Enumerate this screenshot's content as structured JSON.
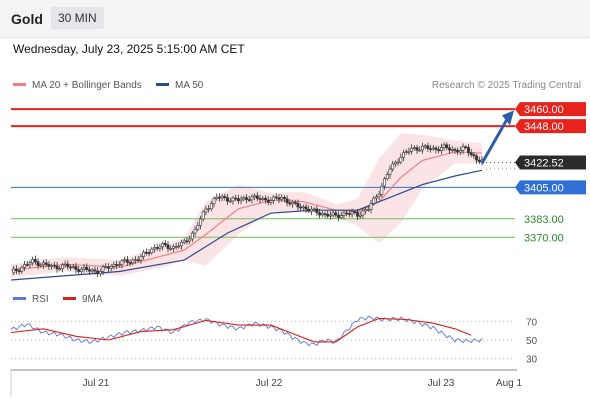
{
  "header": {
    "symbol": "Gold",
    "timeframe": "30 MIN"
  },
  "datetime": "Wednesday, July 23, 2025 5:15:00 AM CET",
  "legend": {
    "ma20_label": "MA 20 + Bollinger Bands",
    "ma50_label": "MA 50",
    "credit": "Research © 2025 Trading Central"
  },
  "colors": {
    "ma20": "#f08080",
    "ma50": "#2c4b8c",
    "bands_fill": "#fbd9dc",
    "resistance": "#e8231d",
    "pivot": "#2f6fd6",
    "support": "#6cbf5a",
    "arrow": "#2d5fa8",
    "candle": "#333333",
    "rsi": "#5b77d6",
    "rsi_ma": "#d9201a"
  },
  "chart_data": {
    "type": "candlestick",
    "x_ticks": [
      "Jul 21",
      "Jul 22",
      "Jul 23",
      "Aug 1"
    ],
    "price_ylim": [
      3340,
      3472
    ],
    "levels": {
      "resistances": [
        3460.0,
        3448.0
      ],
      "last": 3422.52,
      "pivot": 3405.0,
      "supports": [
        3383.0,
        3370.0
      ]
    },
    "level_labels": {
      "r2": "3460.00",
      "r1": "3448.00",
      "last": "3422.52",
      "pivot": "3405.00",
      "s1": "3383.00",
      "s2": "3370.00"
    },
    "price_path": [
      [
        0,
        3345
      ],
      [
        4,
        3349
      ],
      [
        8,
        3353
      ],
      [
        12,
        3351
      ],
      [
        16,
        3349
      ],
      [
        20,
        3350
      ],
      [
        24,
        3348
      ],
      [
        28,
        3347
      ],
      [
        32,
        3346
      ],
      [
        36,
        3349
      ],
      [
        40,
        3352
      ],
      [
        44,
        3353
      ],
      [
        48,
        3356
      ],
      [
        52,
        3362
      ],
      [
        56,
        3364
      ],
      [
        60,
        3363
      ],
      [
        64,
        3366
      ],
      [
        68,
        3375
      ],
      [
        72,
        3390
      ],
      [
        76,
        3398
      ],
      [
        80,
        3397
      ],
      [
        84,
        3396
      ],
      [
        88,
        3398
      ],
      [
        92,
        3397
      ],
      [
        96,
        3396
      ],
      [
        100,
        3398
      ],
      [
        104,
        3393
      ],
      [
        108,
        3391
      ],
      [
        112,
        3388
      ],
      [
        116,
        3386
      ],
      [
        120,
        3385
      ],
      [
        124,
        3387
      ],
      [
        128,
        3386
      ],
      [
        132,
        3390
      ],
      [
        136,
        3402
      ],
      [
        140,
        3418
      ],
      [
        144,
        3427
      ],
      [
        148,
        3432
      ],
      [
        152,
        3433
      ],
      [
        156,
        3432
      ],
      [
        160,
        3433
      ],
      [
        164,
        3431
      ],
      [
        168,
        3432
      ],
      [
        172,
        3425
      ],
      [
        174,
        3423
      ]
    ],
    "ma20_path": [
      [
        0,
        3347
      ],
      [
        20,
        3351
      ],
      [
        40,
        3349
      ],
      [
        56,
        3357
      ],
      [
        64,
        3361
      ],
      [
        72,
        3372
      ],
      [
        84,
        3390
      ],
      [
        96,
        3396
      ],
      [
        108,
        3395
      ],
      [
        120,
        3389
      ],
      [
        128,
        3388
      ],
      [
        136,
        3395
      ],
      [
        144,
        3412
      ],
      [
        152,
        3424
      ],
      [
        164,
        3430
      ],
      [
        174,
        3429
      ]
    ],
    "upper_band": [
      [
        0,
        3351
      ],
      [
        20,
        3356
      ],
      [
        40,
        3354
      ],
      [
        56,
        3364
      ],
      [
        64,
        3370
      ],
      [
        72,
        3395
      ],
      [
        84,
        3407
      ],
      [
        96,
        3401
      ],
      [
        108,
        3402
      ],
      [
        120,
        3393
      ],
      [
        128,
        3397
      ],
      [
        136,
        3425
      ],
      [
        144,
        3443
      ],
      [
        152,
        3442
      ],
      [
        164,
        3438
      ],
      [
        174,
        3436
      ]
    ],
    "lower_band": [
      [
        0,
        3342
      ],
      [
        20,
        3346
      ],
      [
        40,
        3343
      ],
      [
        56,
        3349
      ],
      [
        64,
        3354
      ],
      [
        72,
        3350
      ],
      [
        84,
        3372
      ],
      [
        96,
        3388
      ],
      [
        108,
        3388
      ],
      [
        120,
        3384
      ],
      [
        128,
        3378
      ],
      [
        136,
        3366
      ],
      [
        144,
        3380
      ],
      [
        152,
        3404
      ],
      [
        164,
        3422
      ],
      [
        174,
        3422
      ]
    ],
    "ma50_path": [
      [
        0,
        3340
      ],
      [
        40,
        3346
      ],
      [
        64,
        3354
      ],
      [
        80,
        3373
      ],
      [
        96,
        3387
      ],
      [
        112,
        3389
      ],
      [
        128,
        3389
      ],
      [
        140,
        3398
      ],
      [
        152,
        3407
      ],
      [
        164,
        3413
      ],
      [
        174,
        3417
      ]
    ],
    "rsi": {
      "levels": [
        70,
        50,
        30
      ],
      "ylim": [
        20,
        80
      ],
      "rsi_path": [
        [
          0,
          61
        ],
        [
          6,
          67
        ],
        [
          12,
          58
        ],
        [
          18,
          56
        ],
        [
          24,
          50
        ],
        [
          30,
          48
        ],
        [
          36,
          53
        ],
        [
          42,
          58
        ],
        [
          48,
          60
        ],
        [
          54,
          64
        ],
        [
          60,
          58
        ],
        [
          66,
          69
        ],
        [
          72,
          72
        ],
        [
          78,
          66
        ],
        [
          84,
          62
        ],
        [
          90,
          68
        ],
        [
          96,
          64
        ],
        [
          100,
          60
        ],
        [
          104,
          53
        ],
        [
          108,
          47
        ],
        [
          112,
          45
        ],
        [
          116,
          50
        ],
        [
          120,
          48
        ],
        [
          124,
          60
        ],
        [
          128,
          72
        ],
        [
          132,
          74
        ],
        [
          138,
          72
        ],
        [
          144,
          73
        ],
        [
          150,
          69
        ],
        [
          156,
          63
        ],
        [
          160,
          56
        ],
        [
          164,
          50
        ],
        [
          168,
          49
        ],
        [
          174,
          50
        ]
      ],
      "ma_path": [
        [
          0,
          58
        ],
        [
          12,
          62
        ],
        [
          24,
          54
        ],
        [
          36,
          50
        ],
        [
          48,
          59
        ],
        [
          60,
          61
        ],
        [
          72,
          71
        ],
        [
          84,
          66
        ],
        [
          96,
          66
        ],
        [
          104,
          57
        ],
        [
          112,
          48
        ],
        [
          120,
          48
        ],
        [
          128,
          64
        ],
        [
          136,
          73
        ],
        [
          146,
          72
        ],
        [
          156,
          68
        ],
        [
          164,
          62
        ],
        [
          170,
          55
        ]
      ]
    }
  }
}
